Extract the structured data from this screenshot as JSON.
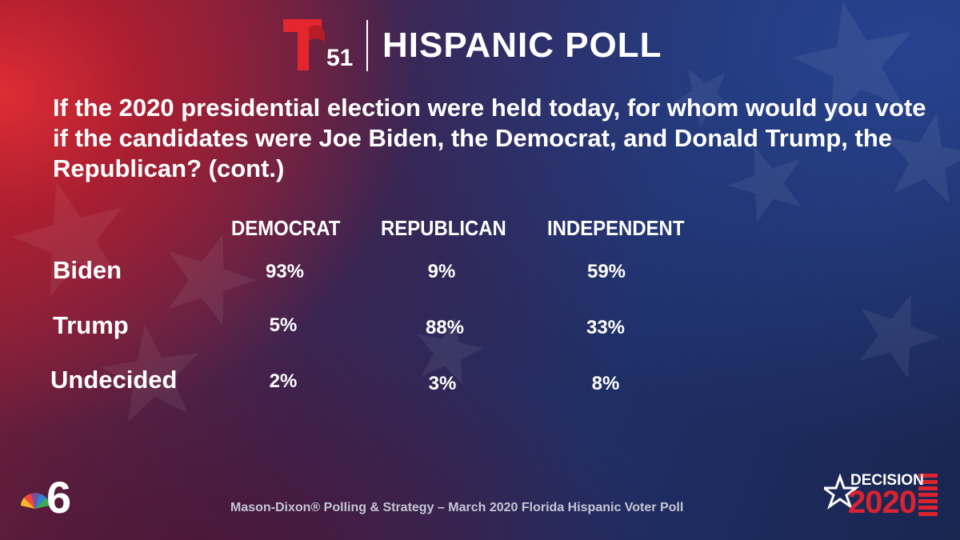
{
  "header": {
    "logo_number": "51",
    "title": "HISPANIC POLL"
  },
  "question": "If the 2020 presidential election were held today, for whom would you vote if the candidates were Joe Biden, the Democrat, and Donald Trump, the Republican? (cont.)",
  "footer": {
    "source": "Mason-Dixon® Polling & Strategy – March 2020 Florida Hispanic Voter Poll",
    "nbc_number": "6",
    "decision_label": "DECISION",
    "decision_year": "2020"
  },
  "colors": {
    "accent_red": "#d9242f",
    "text": "#ffffff"
  },
  "chart_data": {
    "type": "table",
    "columns": [
      "DEMOCRAT",
      "REPUBLICAN",
      "INDEPENDENT"
    ],
    "rows": [
      {
        "label": "Biden",
        "values": [
          "93%",
          "9%",
          "59%"
        ]
      },
      {
        "label": "Trump",
        "values": [
          "5%",
          "88%",
          "33%"
        ]
      },
      {
        "label": "Undecided",
        "values": [
          "2%",
          "3%",
          "8%"
        ]
      }
    ]
  }
}
